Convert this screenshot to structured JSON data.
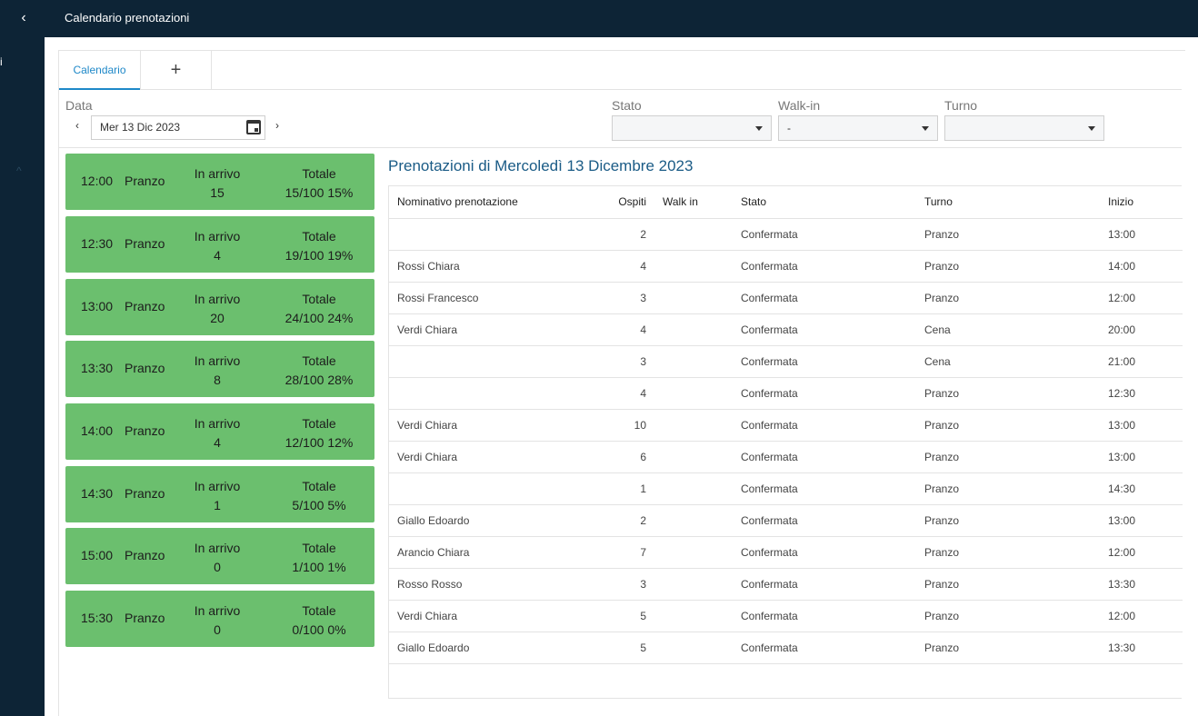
{
  "header": {
    "title": "Calendario prenotazioni",
    "back_icon": "‹"
  },
  "nav": {
    "fragment": "i",
    "chevron": "^"
  },
  "tabs": [
    {
      "label": "Calendario"
    },
    {
      "label": "+"
    }
  ],
  "filters": {
    "data_label": "Data",
    "date_value": "Mer 13 Dic 2023",
    "prev": "‹",
    "next": "›",
    "stato_label": "Stato",
    "stato_value": "",
    "walkin_label": "Walk-in",
    "walkin_value": "-",
    "turno_label": "Turno",
    "turno_value": ""
  },
  "slots": [
    {
      "time": "12:00",
      "meal": "Pranzo",
      "arr_label": "In arrivo",
      "arr_value": "15",
      "tot_label": "Totale",
      "tot_value": "15/100 15%"
    },
    {
      "time": "12:30",
      "meal": "Pranzo",
      "arr_label": "In arrivo",
      "arr_value": "4",
      "tot_label": "Totale",
      "tot_value": "19/100 19%"
    },
    {
      "time": "13:00",
      "meal": "Pranzo",
      "arr_label": "In arrivo",
      "arr_value": "20",
      "tot_label": "Totale",
      "tot_value": "24/100 24%"
    },
    {
      "time": "13:30",
      "meal": "Pranzo",
      "arr_label": "In arrivo",
      "arr_value": "8",
      "tot_label": "Totale",
      "tot_value": "28/100 28%"
    },
    {
      "time": "14:00",
      "meal": "Pranzo",
      "arr_label": "In arrivo",
      "arr_value": "4",
      "tot_label": "Totale",
      "tot_value": "12/100 12%"
    },
    {
      "time": "14:30",
      "meal": "Pranzo",
      "arr_label": "In arrivo",
      "arr_value": "1",
      "tot_label": "Totale",
      "tot_value": "5/100 5%"
    },
    {
      "time": "15:00",
      "meal": "Pranzo",
      "arr_label": "In arrivo",
      "arr_value": "0",
      "tot_label": "Totale",
      "tot_value": "1/100 1%"
    },
    {
      "time": "15:30",
      "meal": "Pranzo",
      "arr_label": "In arrivo",
      "arr_value": "0",
      "tot_label": "Totale",
      "tot_value": "0/100 0%"
    }
  ],
  "list": {
    "title": "Prenotazioni di Mercoledì 13 Dicembre 2023",
    "columns": [
      "Nominativo prenotazione",
      "Ospiti",
      "Walk in",
      "Stato",
      "Turno",
      "Inizio"
    ],
    "rows": [
      {
        "name": "",
        "guests": "2",
        "walkin": "",
        "status": "Confermata",
        "shift": "Pranzo",
        "start": "13:00"
      },
      {
        "name": "Rossi Chiara",
        "guests": "4",
        "walkin": "",
        "status": "Confermata",
        "shift": "Pranzo",
        "start": "14:00"
      },
      {
        "name": "Rossi Francesco",
        "guests": "3",
        "walkin": "",
        "status": "Confermata",
        "shift": "Pranzo",
        "start": "12:00"
      },
      {
        "name": "Verdi Chiara",
        "guests": "4",
        "walkin": "",
        "status": "Confermata",
        "shift": "Cena",
        "start": "20:00"
      },
      {
        "name": "",
        "guests": "3",
        "walkin": "",
        "status": "Confermata",
        "shift": "Cena",
        "start": "21:00"
      },
      {
        "name": "",
        "guests": "4",
        "walkin": "",
        "status": "Confermata",
        "shift": "Pranzo",
        "start": "12:30"
      },
      {
        "name": "Verdi Chiara",
        "guests": "10",
        "walkin": "",
        "status": "Confermata",
        "shift": "Pranzo",
        "start": "13:00"
      },
      {
        "name": "Verdi Chiara",
        "guests": "6",
        "walkin": "",
        "status": "Confermata",
        "shift": "Pranzo",
        "start": "13:00"
      },
      {
        "name": "",
        "guests": "1",
        "walkin": "",
        "status": "Confermata",
        "shift": "Pranzo",
        "start": "14:30"
      },
      {
        "name": "Giallo Edoardo",
        "guests": "2",
        "walkin": "",
        "status": "Confermata",
        "shift": "Pranzo",
        "start": "13:00"
      },
      {
        "name": "Arancio Chiara",
        "guests": "7",
        "walkin": "",
        "status": "Confermata",
        "shift": "Pranzo",
        "start": "12:00"
      },
      {
        "name": "Rosso Rosso",
        "guests": "3",
        "walkin": "",
        "status": "Confermata",
        "shift": "Pranzo",
        "start": "13:30"
      },
      {
        "name": "Verdi Chiara",
        "guests": "5",
        "walkin": "",
        "status": "Confermata",
        "shift": "Pranzo",
        "start": "12:00"
      },
      {
        "name": "Giallo Edoardo",
        "guests": "5",
        "walkin": "",
        "status": "Confermata",
        "shift": "Pranzo",
        "start": "13:30"
      }
    ]
  }
}
